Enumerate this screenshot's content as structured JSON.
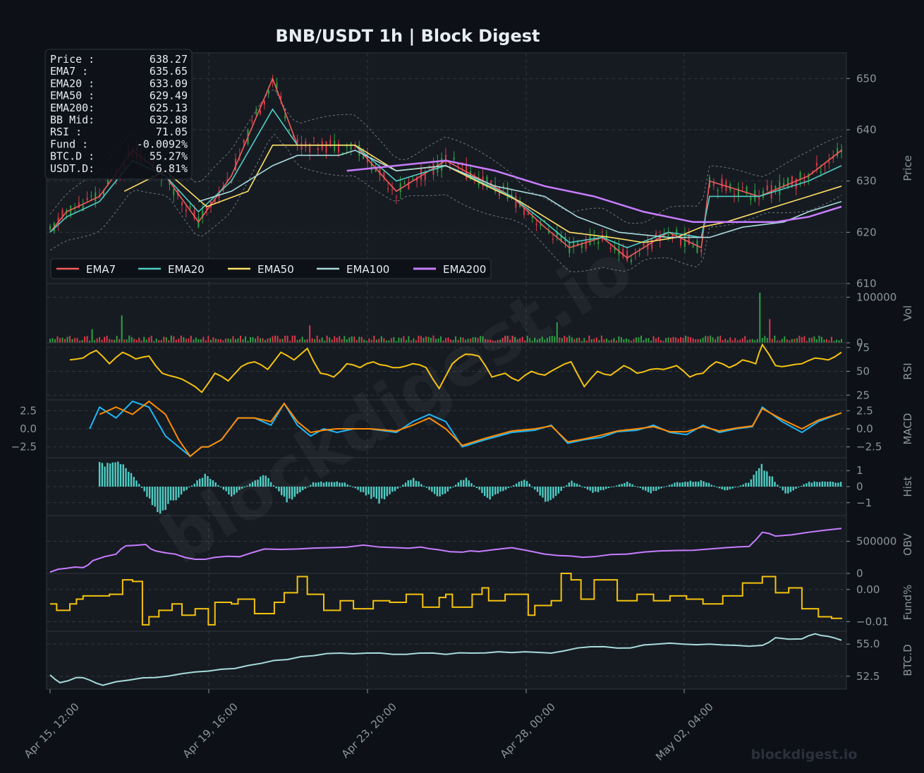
{
  "title": "BNB/USDT  1h  |  Block Digest",
  "watermark": "blockdigest.io",
  "colors": {
    "background": "#0d1117",
    "panel": "#161b22",
    "grid": "#30363d",
    "ema7": "#f25c5c",
    "ema20": "#4ecdc4",
    "ema50": "#ffe066",
    "ema100": "#a8dadc",
    "ema200": "#c77dff",
    "up": "#2ea043",
    "down": "#d73a49",
    "rsi": "#f4c20d",
    "macd": "#1eb6f5",
    "signal": "#ff8c00",
    "hist": "#4ecdc4",
    "obv": "#c77dff",
    "funding": "#f4c20d",
    "btcd": "#a8dadc"
  },
  "info_box": [
    {
      "label": "Price :",
      "value": "638.27"
    },
    {
      "label": "EMA7  :",
      "value": "635.65"
    },
    {
      "label": "EMA20 :",
      "value": "633.09"
    },
    {
      "label": "EMA50 :",
      "value": "629.49"
    },
    {
      "label": "EMA200:",
      "value": "625.13"
    },
    {
      "label": "BB Mid:",
      "value": "632.88"
    },
    {
      "label": "RSI   :",
      "value": "71.05"
    },
    {
      "label": "Fund  :",
      "value": "-0.0092%"
    },
    {
      "label": "BTC.D :",
      "value": "55.27%"
    },
    {
      "label": "USDT.D:",
      "value": "6.81%"
    }
  ],
  "legend": [
    "EMA7",
    "EMA20",
    "EMA50",
    "EMA100",
    "EMA200"
  ],
  "x_ticks": [
    "Apr 15, 12:00",
    "Apr 19, 16:00",
    "Apr 23, 20:00",
    "Apr 28, 00:00",
    "May 02, 04:00"
  ],
  "chart_data": [
    {
      "type": "line",
      "panel": "price",
      "ylabel": "Price",
      "ylim": [
        610,
        655
      ],
      "yticks": [
        "650",
        "640",
        "630",
        "620",
        "610"
      ],
      "hours": 480,
      "series": [
        {
          "name": "EMA7",
          "x": [
            0,
            10,
            30,
            50,
            70,
            90,
            110,
            135,
            150,
            175,
            185,
            210,
            240,
            280,
            300,
            315,
            335,
            350,
            375,
            395,
            400,
            430,
            460,
            480
          ],
          "y": [
            620,
            624,
            627,
            636,
            631,
            622,
            631,
            650,
            637,
            637,
            637,
            628,
            634,
            627,
            621,
            617,
            619,
            615,
            620,
            617,
            630,
            627,
            631,
            636
          ]
        },
        {
          "name": "EMA20",
          "x": [
            0,
            10,
            30,
            50,
            70,
            90,
            110,
            135,
            150,
            175,
            185,
            210,
            240,
            280,
            300,
            315,
            335,
            350,
            375,
            395,
            400,
            430,
            460,
            480
          ],
          "y": [
            620,
            623,
            626,
            634,
            631,
            624,
            630,
            644,
            637,
            637,
            637,
            630,
            633,
            627,
            622,
            618,
            619,
            617,
            620,
            619,
            627,
            627,
            630,
            633
          ]
        },
        {
          "name": "EMA50",
          "x": [
            45,
            70,
            95,
            120,
            135,
            150,
            175,
            185,
            210,
            240,
            265,
            285,
            300,
            315,
            340,
            360,
            380,
            395,
            410,
            440,
            460,
            480
          ],
          "y": [
            628,
            632,
            625,
            628,
            637,
            637,
            637,
            637,
            632,
            633,
            629,
            626,
            623,
            620,
            619,
            618,
            619,
            621,
            622,
            625,
            627,
            629
          ]
        },
        {
          "name": "EMA100",
          "x": [
            90,
            110,
            135,
            150,
            175,
            185,
            210,
            240,
            270,
            300,
            320,
            345,
            375,
            400,
            420,
            445,
            460,
            480
          ],
          "y": [
            626,
            628,
            633,
            635,
            635,
            636,
            632,
            633,
            629,
            627,
            623,
            620,
            619,
            619,
            621,
            622,
            624,
            626
          ]
        },
        {
          "name": "EMA200",
          "x": [
            180,
            210,
            240,
            270,
            300,
            330,
            360,
            390,
            410,
            440,
            460,
            480
          ],
          "y": [
            632,
            633,
            634,
            632,
            629,
            627,
            624,
            622,
            622,
            622,
            623,
            625
          ]
        }
      ]
    },
    {
      "type": "bar",
      "panel": "volume",
      "ylabel": "Vol",
      "ylim": [
        0,
        130000
      ],
      "yticks": [
        "100000",
        "0"
      ],
      "spikes": [
        {
          "x": 26,
          "v": 30000
        },
        {
          "x": 44,
          "v": 60000
        },
        {
          "x": 158,
          "v": 38000
        },
        {
          "x": 308,
          "v": 45000
        },
        {
          "x": 431,
          "v": 110000
        },
        {
          "x": 437,
          "v": 52000
        }
      ]
    },
    {
      "type": "line",
      "panel": "rsi",
      "ylabel": "RSI",
      "ylim": [
        20,
        80
      ],
      "yticks": [
        "75",
        "50",
        "25"
      ],
      "series": [
        {
          "name": "RSI",
          "x": [
            12,
            20,
            28,
            36,
            44,
            52,
            60,
            68,
            76,
            84,
            92,
            100,
            108,
            116,
            124,
            132,
            140,
            148,
            156,
            164,
            172,
            180,
            188,
            196,
            204,
            212,
            220,
            228,
            236,
            244,
            252,
            260,
            268,
            276,
            284,
            292,
            300,
            308,
            316,
            324,
            332,
            340,
            348,
            356,
            364,
            372,
            380,
            388,
            396,
            404,
            412,
            420,
            428,
            432,
            440,
            448,
            456,
            464,
            472,
            480
          ],
          "y": [
            62,
            64,
            72,
            58,
            70,
            63,
            66,
            48,
            44,
            38,
            28,
            48,
            40,
            55,
            60,
            52,
            70,
            62,
            74,
            48,
            44,
            58,
            54,
            60,
            56,
            54,
            58,
            54,
            32,
            58,
            68,
            66,
            44,
            48,
            40,
            50,
            46,
            54,
            60,
            34,
            50,
            46,
            56,
            48,
            52,
            52,
            56,
            44,
            48,
            60,
            54,
            62,
            58,
            78,
            56,
            56,
            58,
            64,
            62,
            70
          ]
        }
      ]
    },
    {
      "type": "line",
      "panel": "macd",
      "ylabel": "MACD",
      "ylim": [
        -4.0,
        4.0
      ],
      "yticks": [
        "2.5",
        "0.0",
        "−2.5"
      ],
      "series": [
        {
          "name": "MACD",
          "x": [
            24,
            30,
            40,
            50,
            60,
            70,
            78,
            85,
            92,
            96,
            104,
            114,
            124,
            134,
            142,
            150,
            158,
            166,
            174,
            184,
            194,
            210,
            220,
            230,
            240,
            250,
            264,
            280,
            294,
            304,
            314,
            324,
            334,
            344,
            356,
            366,
            376,
            386,
            396,
            406,
            416,
            426,
            432,
            444,
            456,
            466,
            480
          ],
          "y": [
            0,
            3,
            1.5,
            3.8,
            3,
            -1,
            -2.5,
            -3.8,
            -2.5,
            -2.5,
            -1.5,
            1.5,
            1.5,
            0.5,
            3.5,
            0.5,
            -1,
            0,
            -0.5,
            0,
            0,
            -0.5,
            1,
            2,
            1,
            -2.5,
            -1.5,
            -0.5,
            -0.2,
            0.5,
            -2.0,
            -1.5,
            -1.2,
            -0.4,
            -0.2,
            0.5,
            -0.5,
            -0.8,
            0.5,
            -0.5,
            0,
            0.3,
            3,
            1,
            -0.5,
            1,
            2.2
          ]
        },
        {
          "name": "Signal",
          "x": [
            30,
            40,
            50,
            60,
            70,
            78,
            85,
            92,
            96,
            104,
            114,
            124,
            134,
            142,
            150,
            158,
            166,
            174,
            184,
            194,
            210,
            220,
            230,
            240,
            250,
            264,
            280,
            294,
            304,
            314,
            324,
            334,
            344,
            356,
            366,
            376,
            386,
            396,
            406,
            416,
            426,
            432,
            444,
            456,
            466,
            480
          ],
          "y": [
            2.0,
            3.0,
            2.0,
            3.8,
            2.0,
            -1.5,
            -3.8,
            -2.5,
            -2.5,
            -1.5,
            1.5,
            1.5,
            1.0,
            3.5,
            1.0,
            -0.5,
            -0.2,
            0.0,
            0.0,
            0.0,
            -0.3,
            0.5,
            1.5,
            0.0,
            -2.3,
            -1.3,
            -0.3,
            0.0,
            0.4,
            -1.8,
            -1.4,
            -0.9,
            -0.3,
            0.0,
            0.3,
            -0.4,
            -0.4,
            0.3,
            -0.3,
            0.1,
            0.4,
            2.8,
            1.3,
            0.0,
            1.2,
            2.2
          ]
        }
      ]
    },
    {
      "type": "bar",
      "panel": "hist",
      "ylabel": "Hist",
      "ylim": [
        -1.8,
        1.8
      ],
      "yticks": [
        "1",
        "0",
        "−1"
      ],
      "series": [
        {
          "name": "Hist",
          "x": [
            32,
            46,
            66,
            94,
            110,
            130,
            144,
            160,
            178,
            200,
            220,
            236,
            252,
            266,
            288,
            302,
            316,
            330,
            350,
            364,
            380,
            396,
            410,
            424,
            432,
            446,
            460,
            480
          ],
          "y": [
            1.5,
            1.4,
            -1.7,
            0.8,
            -0.6,
            0.8,
            -1.0,
            0.3,
            0.3,
            -1.0,
            0.6,
            -0.7,
            0.6,
            -0.8,
            0.5,
            -1.1,
            0.4,
            -0.4,
            0.3,
            -0.4,
            0.3,
            0.4,
            -0.3,
            0.3,
            1.4,
            -0.5,
            0.3,
            0.3
          ]
        }
      ]
    },
    {
      "type": "line",
      "panel": "obv",
      "ylabel": "OBV",
      "ylim": [
        0,
        900000
      ],
      "yticks": [
        "500000",
        "0"
      ],
      "series": [
        {
          "name": "OBV",
          "x": [
            0,
            10,
            20,
            26,
            40,
            46,
            58,
            64,
            76,
            88,
            100,
            115,
            130,
            150,
            170,
            190,
            210,
            225,
            235,
            250,
            260,
            280,
            300,
            316,
            330,
            350,
            370,
            390,
            410,
            424,
            432,
            440,
            460,
            480
          ],
          "y": [
            20000,
            80000,
            90000,
            200000,
            300000,
            430000,
            450000,
            350000,
            300000,
            220000,
            250000,
            260000,
            380000,
            380000,
            400000,
            440000,
            400000,
            410000,
            370000,
            330000,
            340000,
            400000,
            300000,
            270000,
            260000,
            300000,
            350000,
            360000,
            400000,
            420000,
            640000,
            580000,
            640000,
            700000
          ]
        }
      ]
    },
    {
      "type": "line",
      "panel": "funding",
      "ylabel": "Fund%",
      "ylim": [
        -0.013,
        0.005
      ],
      "yticks": [
        "0.00",
        "−0.01"
      ],
      "series": [
        {
          "name": "Funding",
          "x": [
            0,
            4,
            12,
            16,
            20,
            28,
            36,
            44,
            50,
            56,
            60,
            66,
            74,
            80,
            88,
            96,
            100,
            110,
            114,
            124,
            136,
            142,
            150,
            156,
            166,
            176,
            184,
            196,
            206,
            216,
            226,
            236,
            240,
            244,
            256,
            262,
            266,
            276,
            290,
            294,
            304,
            310,
            316,
            322,
            330,
            344,
            356,
            366,
            376,
            386,
            396,
            408,
            420,
            432,
            440,
            448,
            456,
            466,
            474,
            480
          ],
          "y": [
            -0.0045,
            -0.0065,
            -0.0045,
            -0.003,
            -0.002,
            -0.002,
            -0.0015,
            0.003,
            0.0025,
            -0.011,
            -0.0085,
            -0.0065,
            -0.0045,
            -0.008,
            -0.006,
            -0.011,
            -0.004,
            -0.0045,
            -0.003,
            -0.0075,
            -0.004,
            -0.001,
            0.004,
            -0.0015,
            -0.0065,
            -0.0035,
            -0.006,
            -0.0035,
            -0.004,
            -0.0015,
            -0.0055,
            -0.0025,
            -0.0015,
            -0.0055,
            -0.0015,
            0.0005,
            -0.0035,
            -0.0015,
            -0.008,
            -0.005,
            -0.0035,
            0.005,
            0.003,
            -0.003,
            0.003,
            -0.0035,
            -0.0015,
            -0.0035,
            -0.002,
            -0.003,
            -0.0045,
            -0.002,
            0.002,
            0.004,
            -0.001,
            0.0005,
            -0.006,
            -0.0085,
            -0.009,
            -0.0092
          ]
        }
      ]
    },
    {
      "type": "line",
      "panel": "btcd",
      "ylabel": "BTC.D",
      "ylim": [
        51.5,
        56.0
      ],
      "yticks": [
        "55.0",
        "52.5"
      ],
      "series": [
        {
          "name": "BTC.D",
          "x": [
            0,
            6,
            16,
            24,
            32,
            48,
            64,
            80,
            96,
            112,
            128,
            144,
            160,
            176,
            192,
            208,
            224,
            240,
            256,
            272,
            288,
            304,
            320,
            336,
            352,
            368,
            384,
            400,
            416,
            432,
            440,
            456,
            464,
            472,
            480
          ],
          "y": [
            52.6,
            52.0,
            52.4,
            52.2,
            51.8,
            52.2,
            52.4,
            52.7,
            52.9,
            53.1,
            53.5,
            53.8,
            54.1,
            54.3,
            54.3,
            54.2,
            54.3,
            54.2,
            54.3,
            54.4,
            54.4,
            54.3,
            54.7,
            54.8,
            54.7,
            55.0,
            55.0,
            55.0,
            54.9,
            54.9,
            55.5,
            55.4,
            55.8,
            55.6,
            55.3
          ]
        }
      ]
    }
  ]
}
